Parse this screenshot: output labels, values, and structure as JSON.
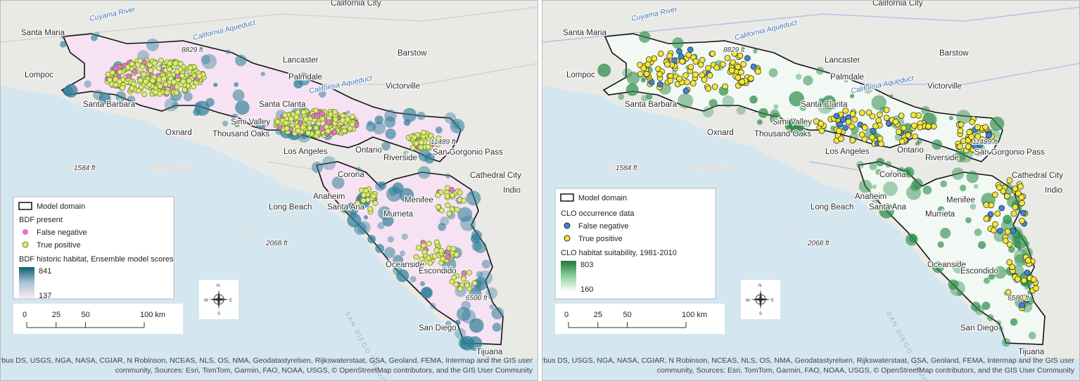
{
  "basemap_labels": [
    "California City",
    "Cuyama River",
    "California Aqueduct",
    "Barstow",
    "Santa Maria",
    "8829 ft",
    "Lancaster",
    "Lompoc",
    "Palmdale",
    "California Aqueduct",
    "Victorville",
    "Santa Barbara",
    "Santa Clarita",
    "Simi Valley",
    "Oxnard",
    "Thousand Oaks",
    "11489 ft",
    "Los Angeles",
    "Ontario",
    "San Gorgonio Pass",
    "Riverside",
    "Cathedral City",
    "Corona",
    "Indio",
    "1584 ft",
    "Anaheim",
    "Long Beach",
    "Santa Ana",
    "Menifee",
    "Murrieta",
    "2068 ft",
    "Oceanside",
    "Escondido",
    "6500 ft",
    "San Diego",
    "Tijuana",
    "SAN DIEGO TROUGH"
  ],
  "scalebar": [
    "0",
    "25",
    "50",
    "100 km"
  ],
  "compass": [
    "N",
    "E",
    "S",
    "W"
  ],
  "sources": [
    "Sources: Esri, Airbus DS, USGS, NGA, NASA, CGIAR, N Robinson, NCEAS, NLS, OS, NMA, Geodatastyrelsen, Rijkswaterstaat, GSA, Geoland, FEMA, Intermap and the GIS user",
    "community, Sources: Esri, TomTom, Garmin, FAO, NOAA, USGS, © OpenStreetMap contributors, and the GIS User Community"
  ],
  "panels": [
    {
      "legend": {
        "domain": "Model domain",
        "points_title": "BDF present",
        "false_negative": "False negative",
        "true_positive": "True positive",
        "ramp_title": "BDF historic habitat, Ensemble model scores",
        "ramp_high": "841",
        "ramp_low": "137"
      }
    },
    {
      "legend": {
        "domain": "Model domain",
        "points_title": "CLO occurrence data",
        "false_negative": "False negative",
        "true_positive": "True positive",
        "ramp_title": "CLO habitat suitability, 1981-2010",
        "ramp_high": "803",
        "ramp_low": "160"
      }
    }
  ]
}
